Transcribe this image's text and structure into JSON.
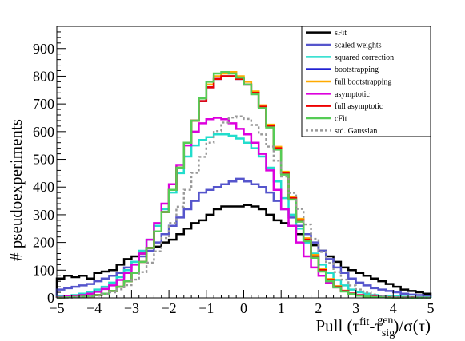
{
  "chart_data": {
    "type": "histogram",
    "xlim": [
      -5,
      5
    ],
    "ylim": [
      0,
      980
    ],
    "bin_width": 0.2,
    "x_ticks": [
      -5,
      -4,
      -3,
      -2,
      -1,
      0,
      1,
      2,
      3,
      4,
      5
    ],
    "y_ticks": [
      0,
      100,
      200,
      300,
      400,
      500,
      600,
      700,
      800,
      900
    ],
    "ylabel": "# pseudoexperiments",
    "xlabel": {
      "prefix": "Pull (τ",
      "sup1": "fit",
      "mid": "-τ",
      "sub2": "sig",
      "sup2": "gen",
      "suffix": ")/σ(τ)"
    },
    "legend_position": "top-right",
    "series": [
      {
        "name": "sFit",
        "color": "#000000",
        "style": "solid",
        "values": [
          70,
          80,
          75,
          80,
          70,
          90,
          95,
          100,
          120,
          140,
          150,
          160,
          180,
          185,
          200,
          210,
          230,
          250,
          270,
          280,
          300,
          320,
          330,
          330,
          330,
          335,
          330,
          320,
          300,
          280,
          270,
          260,
          230,
          210,
          190,
          170,
          150,
          130,
          110,
          100,
          90,
          80,
          70,
          60,
          50,
          40,
          30,
          25,
          20,
          15
        ]
      },
      {
        "name": "scaled weights",
        "color": "#5555cc",
        "style": "solid",
        "values": [
          30,
          35,
          40,
          45,
          50,
          60,
          70,
          80,
          90,
          110,
          130,
          150,
          170,
          200,
          230,
          260,
          290,
          320,
          350,
          380,
          390,
          400,
          410,
          420,
          430,
          420,
          410,
          400,
          380,
          350,
          320,
          290,
          260,
          230,
          200,
          170,
          140,
          110,
          90,
          70,
          55,
          45,
          35,
          30,
          25,
          20,
          15,
          12,
          10,
          8
        ]
      },
      {
        "name": "squared correction",
        "color": "#22ddcc",
        "style": "solid",
        "values": [
          5,
          8,
          10,
          15,
          20,
          30,
          40,
          55,
          75,
          100,
          130,
          170,
          210,
          260,
          320,
          380,
          450,
          510,
          550,
          570,
          580,
          590,
          590,
          585,
          575,
          560,
          540,
          510,
          470,
          420,
          360,
          300,
          250,
          200,
          160,
          120,
          90,
          65,
          45,
          30,
          20,
          15,
          10,
          8,
          6,
          5,
          4,
          3,
          2,
          2
        ]
      },
      {
        "name": "bootstrapping",
        "color": "#0000cc",
        "style": "solid",
        "values": [
          1,
          2,
          3,
          4,
          6,
          10,
          15,
          25,
          40,
          60,
          90,
          130,
          180,
          240,
          310,
          390,
          470,
          560,
          640,
          710,
          760,
          790,
          800,
          800,
          790,
          770,
          740,
          690,
          620,
          540,
          450,
          360,
          280,
          210,
          150,
          100,
          65,
          40,
          25,
          15,
          9,
          6,
          4,
          3,
          2,
          1,
          1,
          1,
          0,
          0
        ]
      },
      {
        "name": "full bootstrapping",
        "color": "#ffaa00",
        "style": "solid",
        "values": [
          1,
          2,
          3,
          4,
          6,
          10,
          15,
          25,
          40,
          60,
          90,
          130,
          180,
          240,
          310,
          390,
          470,
          560,
          640,
          720,
          770,
          800,
          810,
          815,
          800,
          780,
          745,
          695,
          625,
          545,
          455,
          365,
          285,
          215,
          155,
          105,
          68,
          42,
          26,
          16,
          10,
          6,
          4,
          3,
          2,
          1,
          1,
          1,
          0,
          0
        ]
      },
      {
        "name": "asymptotic",
        "color": "#dd00dd",
        "style": "solid",
        "values": [
          3,
          5,
          7,
          10,
          15,
          22,
          32,
          45,
          65,
          90,
          120,
          160,
          210,
          270,
          340,
          410,
          480,
          550,
          600,
          630,
          645,
          650,
          645,
          630,
          610,
          590,
          560,
          520,
          460,
          390,
          320,
          260,
          200,
          150,
          110,
          80,
          55,
          38,
          25,
          16,
          10,
          7,
          5,
          3,
          2,
          2,
          1,
          1,
          0,
          0
        ]
      },
      {
        "name": "full asymptotic",
        "color": "#ee0000",
        "style": "solid",
        "values": [
          1,
          2,
          3,
          4,
          6,
          10,
          15,
          25,
          40,
          60,
          90,
          130,
          180,
          240,
          310,
          390,
          470,
          560,
          640,
          710,
          760,
          790,
          800,
          800,
          790,
          770,
          740,
          690,
          620,
          540,
          450,
          360,
          280,
          210,
          150,
          100,
          65,
          40,
          25,
          15,
          9,
          6,
          4,
          3,
          2,
          1,
          1,
          1,
          0,
          0
        ]
      },
      {
        "name": "cFit",
        "color": "#55cc55",
        "style": "solid",
        "values": [
          1,
          2,
          3,
          4,
          6,
          10,
          15,
          25,
          40,
          60,
          90,
          130,
          180,
          240,
          310,
          390,
          470,
          560,
          640,
          720,
          780,
          810,
          815,
          810,
          795,
          770,
          735,
          685,
          615,
          535,
          445,
          355,
          275,
          205,
          145,
          95,
          60,
          38,
          23,
          14,
          8,
          5,
          3,
          2,
          1,
          1,
          1,
          0,
          0,
          0
        ]
      },
      {
        "name": "std. Gaussian",
        "color": "#999999",
        "style": "dashed",
        "values": [
          1,
          1,
          2,
          3,
          5,
          8,
          13,
          20,
          31,
          46,
          66,
          93,
          127,
          168,
          216,
          270,
          329,
          390,
          451,
          509,
          560,
          602,
          633,
          651,
          655,
          646,
          624,
          590,
          546,
          495,
          438,
          379,
          321,
          265,
          213,
          166,
          126,
          93,
          66,
          45,
          30,
          19,
          12,
          7,
          4,
          2,
          1,
          1,
          0,
          0
        ]
      }
    ]
  }
}
